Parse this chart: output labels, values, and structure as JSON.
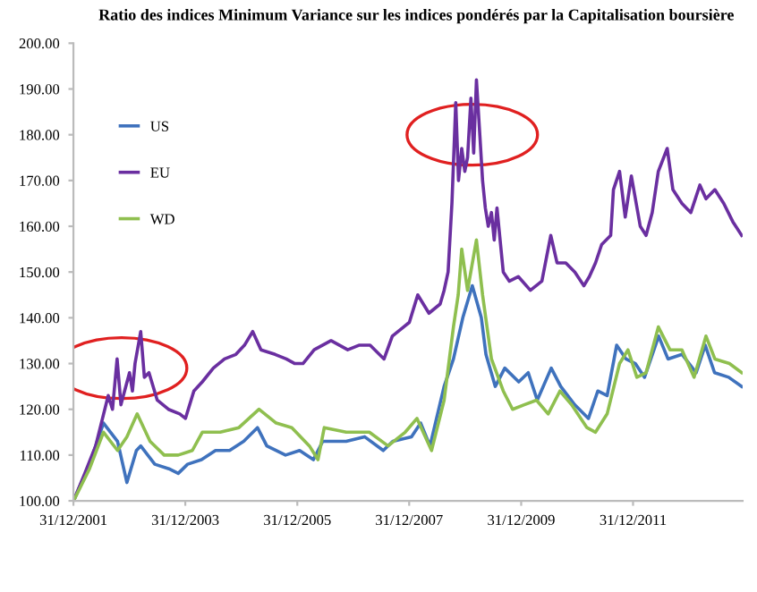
{
  "chart_data": {
    "type": "line",
    "title": "Ratio des indices Minimum Variance sur les indices pondérés par la Capitalisation boursière",
    "xlim": [
      "2001-12-31",
      "2013-12-15"
    ],
    "xticks": [
      {
        "value": "2001-12-31",
        "label": "31/12/2001"
      },
      {
        "value": "2003-12-31",
        "label": "31/12/2003"
      },
      {
        "value": "2005-12-31",
        "label": "31/12/2005"
      },
      {
        "value": "2007-12-31",
        "label": "31/12/2007"
      },
      {
        "value": "2009-12-31",
        "label": "31/12/2009"
      },
      {
        "value": "2011-12-31",
        "label": "31/12/2011"
      }
    ],
    "ylim": [
      100,
      200
    ],
    "yticks": [
      {
        "value": 100,
        "label": "100.00"
      },
      {
        "value": 110,
        "label": "110.00"
      },
      {
        "value": 120,
        "label": "120.00"
      },
      {
        "value": 130,
        "label": "130.00"
      },
      {
        "value": 140,
        "label": "140.00"
      },
      {
        "value": 150,
        "label": "150.00"
      },
      {
        "value": 160,
        "label": "160.00"
      },
      {
        "value": 170,
        "label": "170.00"
      },
      {
        "value": 180,
        "label": "180.00"
      },
      {
        "value": 190,
        "label": "190.00"
      },
      {
        "value": 200,
        "label": "200.00"
      }
    ],
    "grid": false,
    "legend": "top left",
    "marker": "none",
    "line_style": "solid",
    "series": [
      {
        "name": "US",
        "color": "#3f72bd",
        "x": [
          "2002-01-01",
          "2002-04-15",
          "2002-07-15",
          "2002-10-15",
          "2002-12-15",
          "2003-02-15",
          "2003-03-15",
          "2003-06-15",
          "2003-09-15",
          "2003-11-15",
          "2004-01-15",
          "2004-04-15",
          "2004-07-15",
          "2004-10-15",
          "2005-01-15",
          "2005-04-15",
          "2005-06-15",
          "2005-10-15",
          "2006-01-15",
          "2006-04-15",
          "2006-06-15",
          "2006-11-15",
          "2007-03-15",
          "2007-07-15",
          "2007-09-15",
          "2008-01-15",
          "2008-03-15",
          "2008-05-15",
          "2008-08-15",
          "2008-10-15",
          "2008-12-15",
          "2009-02-15",
          "2009-04-15",
          "2009-05-15",
          "2009-07-15",
          "2009-09-15",
          "2009-12-15",
          "2010-02-15",
          "2010-04-15",
          "2010-07-15",
          "2010-09-15",
          "2010-12-15",
          "2011-03-15",
          "2011-05-15",
          "2011-07-15",
          "2011-09-15",
          "2011-11-15",
          "2012-01-15",
          "2012-03-15",
          "2012-06-15",
          "2012-08-15",
          "2012-11-15",
          "2013-02-15",
          "2013-04-15",
          "2013-06-15",
          "2013-09-15",
          "2013-12-09"
        ],
        "values": [
          100,
          108,
          117,
          113,
          104,
          111,
          112,
          108,
          107,
          106,
          108,
          109,
          111,
          111,
          113,
          116,
          112,
          110,
          111,
          109,
          113,
          113,
          114,
          111,
          113,
          114,
          117,
          112,
          125,
          131,
          140,
          147,
          140,
          132,
          125,
          129,
          126,
          128,
          122,
          129,
          125,
          121,
          118,
          124,
          123,
          134,
          131,
          130,
          127,
          136,
          131,
          132,
          128,
          134,
          128,
          127,
          125
        ]
      },
      {
        "name": "EU",
        "color": "#6a2fa0",
        "x": [
          "2002-01-01",
          "2002-03-15",
          "2002-05-25",
          "2002-08-15",
          "2002-09-12",
          "2002-10-12",
          "2002-11-06",
          "2003-01-01",
          "2003-01-20",
          "2003-02-06",
          "2003-03-15",
          "2003-04-08",
          "2003-05-08",
          "2003-07-01",
          "2003-09-12",
          "2003-11-25",
          "2004-01-01",
          "2004-02-25",
          "2004-04-20",
          "2004-07-01",
          "2004-09-12",
          "2004-11-25",
          "2005-01-20",
          "2005-03-15",
          "2005-05-08",
          "2005-08-08",
          "2005-10-20",
          "2005-12-15",
          "2006-02-06",
          "2006-04-20",
          "2006-08-08",
          "2006-11-25",
          "2007-02-06",
          "2007-04-20",
          "2007-07-20",
          "2007-09-12",
          "2007-11-25",
          "2008-01-01",
          "2008-02-25",
          "2008-05-08",
          "2008-07-20",
          "2008-08-15",
          "2008-09-10",
          "2008-10-05",
          "2008-10-30",
          "2008-11-17",
          "2008-12-08",
          "2008-12-28",
          "2009-01-15",
          "2009-02-06",
          "2009-02-24",
          "2009-03-14",
          "2009-04-05",
          "2009-04-23",
          "2009-05-11",
          "2009-05-30",
          "2009-06-20",
          "2009-07-08",
          "2009-07-26",
          "2009-09-05",
          "2009-10-15",
          "2009-12-12",
          "2010-03-01",
          "2010-05-15",
          "2010-07-12",
          "2010-08-22",
          "2010-10-18",
          "2010-12-16",
          "2011-02-13",
          "2011-03-21",
          "2011-04-30",
          "2011-06-09",
          "2011-08-07",
          "2011-08-25",
          "2011-10-04",
          "2011-11-10",
          "2011-12-20",
          "2012-02-16",
          "2012-03-25",
          "2012-05-04",
          "2012-06-13",
          "2012-08-10",
          "2012-09-16",
          "2012-11-14",
          "2013-01-11",
          "2013-03-11",
          "2013-04-20",
          "2013-06-17",
          "2013-08-14",
          "2013-10-12",
          "2013-12-09"
        ],
        "values": [
          100,
          106,
          112,
          123,
          120,
          131,
          121,
          128,
          124,
          130,
          137,
          127,
          128,
          122,
          120,
          119,
          118,
          124,
          126,
          129,
          131,
          132,
          134,
          137,
          133,
          132,
          131,
          130,
          130,
          133,
          135,
          133,
          134,
          134,
          131,
          136,
          138,
          139,
          145,
          141,
          143,
          146,
          150,
          165,
          187,
          170,
          177,
          172,
          175,
          188,
          176,
          192,
          180,
          170,
          164,
          160,
          163,
          157,
          164,
          150,
          148,
          149,
          146,
          148,
          158,
          152,
          152,
          150,
          147,
          149,
          152,
          156,
          158,
          168,
          172,
          162,
          171,
          160,
          158,
          163,
          172,
          177,
          168,
          165,
          163,
          169,
          166,
          168,
          165,
          161,
          158
        ]
      },
      {
        "name": "WD",
        "color": "#8fbf4f",
        "x": [
          "2002-01-01",
          "2002-04-15",
          "2002-07-15",
          "2002-10-15",
          "2002-12-15",
          "2003-02-20",
          "2003-05-15",
          "2003-08-15",
          "2003-11-15",
          "2004-02-15",
          "2004-04-20",
          "2004-08-15",
          "2004-12-15",
          "2005-04-25",
          "2005-08-15",
          "2005-11-25",
          "2006-03-20",
          "2006-05-15",
          "2006-06-25",
          "2006-11-15",
          "2007-04-15",
          "2007-08-15",
          "2007-12-05",
          "2008-02-20",
          "2008-05-25",
          "2008-08-15",
          "2008-10-15",
          "2008-11-15",
          "2008-12-08",
          "2009-01-15",
          "2009-03-14",
          "2009-04-23",
          "2009-06-20",
          "2009-09-05",
          "2009-11-05",
          "2010-01-20",
          "2010-04-10",
          "2010-06-25",
          "2010-09-10",
          "2010-11-25",
          "2011-03-05",
          "2011-04-30",
          "2011-07-15",
          "2011-10-04",
          "2011-11-28",
          "2012-01-25",
          "2012-03-25",
          "2012-06-13",
          "2012-08-28",
          "2012-11-14",
          "2013-02-01",
          "2013-04-20",
          "2013-06-17",
          "2013-09-20",
          "2013-12-09"
        ],
        "values": [
          100,
          107,
          115,
          111,
          114,
          119,
          113,
          110,
          110,
          111,
          115,
          115,
          116,
          120,
          117,
          116,
          112,
          109,
          116,
          115,
          115,
          112,
          115,
          118,
          111,
          122,
          138,
          145,
          155,
          146,
          157,
          145,
          131,
          124,
          120,
          121,
          122,
          119,
          124,
          121,
          116,
          115,
          119,
          130,
          133,
          127,
          128,
          138,
          133,
          133,
          127,
          136,
          131,
          130,
          128
        ]
      }
    ]
  }
}
